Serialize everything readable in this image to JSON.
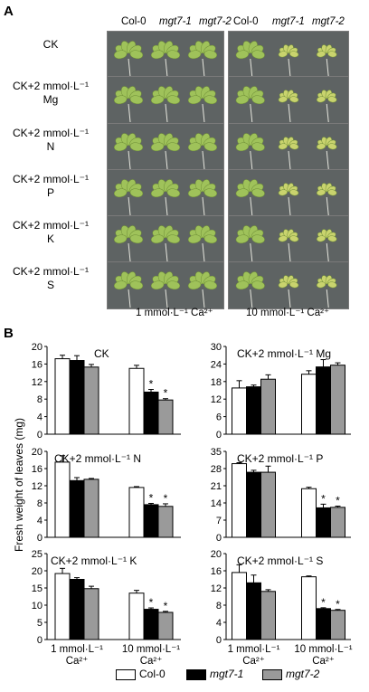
{
  "panel_a": {
    "letter": "A",
    "genotype_headers": [
      "Col-0",
      "mgt7-1",
      "mgt7-2"
    ],
    "rows": [
      {
        "line1": "CK",
        "line2": ""
      },
      {
        "line1": "CK+2 mmol·L⁻¹",
        "line2": "Mg"
      },
      {
        "line1": "CK+2 mmol·L⁻¹",
        "line2": "N"
      },
      {
        "line1": "CK+2 mmol·L⁻¹",
        "line2": "P"
      },
      {
        "line1": "CK+2 mmol·L⁻¹",
        "line2": "K"
      },
      {
        "line1": "CK+2 mmol·L⁻¹",
        "line2": "S"
      }
    ],
    "ca_labels": [
      "1 mmol·L⁻¹ Ca²⁺",
      "10 mmol·L⁻¹ Ca²⁺"
    ],
    "colors": {
      "photo_bg": "#5e6363",
      "leaf": "#9fc25a",
      "leaf_pale": "#c9d36e",
      "root": "#e8e8e0"
    }
  },
  "panel_b": {
    "letter": "B",
    "y_axis_label": "Fresh weight of leaves (mg)",
    "x_group_line1": [
      "1 mmol·L⁻¹",
      "10 mmol·L⁻¹"
    ],
    "x_group_line2": [
      "Ca²⁺",
      "Ca²⁺"
    ]
  },
  "legend": [
    {
      "label": "Col-0",
      "color": "#ffffff",
      "italic": false
    },
    {
      "label": "mgt7-1",
      "color": "#000000",
      "italic": true
    },
    {
      "label": "mgt7-2",
      "color": "#9a9a9a",
      "italic": true
    }
  ],
  "chart_data": [
    {
      "type": "bar",
      "title": "CK",
      "categories": [
        "1 mmol·L⁻¹ Ca²⁺",
        "10 mmol·L⁻¹ Ca²⁺"
      ],
      "ylim": [
        0,
        20
      ],
      "yticks": [
        0,
        4,
        8,
        12,
        16,
        20
      ],
      "series": [
        {
          "name": "Col-0",
          "values": [
            17.2,
            15.0
          ],
          "errors": [
            0.8,
            0.7
          ]
        },
        {
          "name": "mgt7-1",
          "values": [
            16.8,
            9.6
          ],
          "errors": [
            1.1,
            0.6
          ]
        },
        {
          "name": "mgt7-2",
          "values": [
            15.3,
            7.8
          ],
          "errors": [
            0.6,
            0.3
          ]
        }
      ],
      "significance": [
        [
          1,
          1
        ],
        [
          1,
          2
        ]
      ]
    },
    {
      "type": "bar",
      "title": "CK+2 mmol·L⁻¹ Mg",
      "categories": [
        "1 mmol·L⁻¹ Ca²⁺",
        "10 mmol·L⁻¹ Ca²⁺"
      ],
      "ylim": [
        0,
        30
      ],
      "yticks": [
        0,
        6,
        12,
        18,
        24,
        30
      ],
      "series": [
        {
          "name": "Col-0",
          "values": [
            15.8,
            20.5
          ],
          "errors": [
            2.5,
            1.2
          ]
        },
        {
          "name": "mgt7-1",
          "values": [
            16.2,
            23.0
          ],
          "errors": [
            0.6,
            2.5
          ]
        },
        {
          "name": "mgt7-2",
          "values": [
            18.8,
            23.6
          ],
          "errors": [
            1.5,
            0.8
          ]
        }
      ],
      "significance": []
    },
    {
      "type": "bar",
      "title": "CK+2 mmol·L⁻¹ N",
      "categories": [
        "1 mmol·L⁻¹ Ca²⁺",
        "10 mmol·L⁻¹ Ca²⁺"
      ],
      "ylim": [
        0,
        20
      ],
      "yticks": [
        0,
        4,
        8,
        12,
        16,
        20
      ],
      "series": [
        {
          "name": "Col-0",
          "values": [
            17.5,
            11.6
          ],
          "errors": [
            1.5,
            0.2
          ]
        },
        {
          "name": "mgt7-1",
          "values": [
            13.2,
            7.6
          ],
          "errors": [
            0.7,
            0.3
          ]
        },
        {
          "name": "mgt7-2",
          "values": [
            13.5,
            7.2
          ],
          "errors": [
            0.2,
            0.6
          ]
        }
      ],
      "significance": [
        [
          1,
          1
        ],
        [
          1,
          2
        ]
      ]
    },
    {
      "type": "bar",
      "title": "CK+2 mmol·L⁻¹ P",
      "categories": [
        "1 mmol·L⁻¹ Ca²⁺",
        "10 mmol·L⁻¹ Ca²⁺"
      ],
      "ylim": [
        0,
        35
      ],
      "yticks": [
        0,
        7,
        14,
        21,
        28,
        35
      ],
      "series": [
        {
          "name": "Col-0",
          "values": [
            30.0,
            19.8
          ],
          "errors": [
            0.4,
            0.6
          ]
        },
        {
          "name": "mgt7-1",
          "values": [
            26.5,
            12.0
          ],
          "errors": [
            0.8,
            1.5
          ]
        },
        {
          "name": "mgt7-2",
          "values": [
            26.5,
            12.2
          ],
          "errors": [
            2.5,
            0.5
          ]
        }
      ],
      "significance": [
        [
          1,
          1
        ],
        [
          1,
          2
        ]
      ]
    },
    {
      "type": "bar",
      "title": "CK+2 mmol·L⁻¹ K",
      "categories": [
        "1 mmol·L⁻¹ Ca²⁺",
        "10 mmol·L⁻¹ Ca²⁺"
      ],
      "ylim": [
        0,
        25
      ],
      "yticks": [
        0,
        5,
        10,
        15,
        20,
        25
      ],
      "series": [
        {
          "name": "Col-0",
          "values": [
            19.2,
            13.5
          ],
          "errors": [
            1.5,
            0.8
          ]
        },
        {
          "name": "mgt7-1",
          "values": [
            17.5,
            8.8
          ],
          "errors": [
            0.5,
            0.4
          ]
        },
        {
          "name": "mgt7-2",
          "values": [
            14.8,
            7.9
          ],
          "errors": [
            0.7,
            0.3
          ]
        }
      ],
      "significance": [
        [
          1,
          1
        ],
        [
          1,
          2
        ]
      ]
    },
    {
      "type": "bar",
      "title": "CK+2 mmol·L⁻¹ S",
      "categories": [
        "1 mmol·L⁻¹ Ca²⁺",
        "10 mmol·L⁻¹ Ca²⁺"
      ],
      "ylim": [
        0,
        20
      ],
      "yticks": [
        0,
        4,
        8,
        12,
        16,
        20
      ],
      "series": [
        {
          "name": "Col-0",
          "values": [
            15.6,
            14.6
          ],
          "errors": [
            1.8,
            0.2
          ]
        },
        {
          "name": "mgt7-1",
          "values": [
            13.2,
            7.2
          ],
          "errors": [
            1.8,
            0.2
          ]
        },
        {
          "name": "mgt7-2",
          "values": [
            11.2,
            6.8
          ],
          "errors": [
            0.4,
            0.2
          ]
        }
      ],
      "significance": [
        [
          1,
          1
        ],
        [
          1,
          2
        ]
      ]
    }
  ]
}
